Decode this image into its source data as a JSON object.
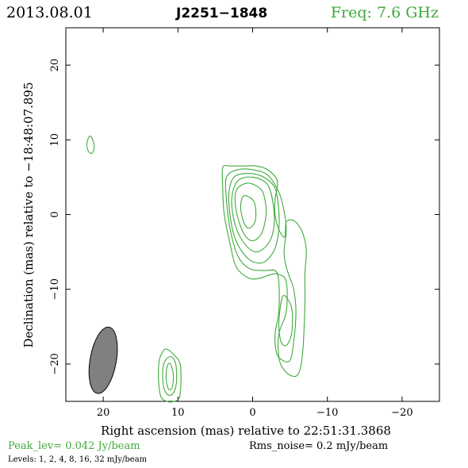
{
  "header": {
    "date": "2013.08.01",
    "source": "J2251−1848",
    "frequency": "Freq: 7.6 GHz"
  },
  "colors": {
    "contour": "#3faa3a",
    "beam_fill": "#808080",
    "text": "#000000"
  },
  "footer": {
    "peak": "Peak_lev=  0.042 Jy/beam",
    "rms": "Rms_noise=  0.2 mJy/beam",
    "levels": "Levels:  1,  2,  4,  8,  16,  32 mJy/beam"
  },
  "chart_data": {
    "type": "contour",
    "xlabel": "Right ascension (mas) relative to 22:51:31.3868",
    "ylabel": "Declination (mas) relative to −18:48:07.895",
    "xlim": [
      25,
      -25
    ],
    "ylim": [
      -25,
      25
    ],
    "x_ticks": [
      20,
      10,
      0,
      -10,
      -20
    ],
    "x_tick_labels": [
      "20",
      "10",
      "0",
      "−10",
      "−20"
    ],
    "y_ticks": [
      20,
      10,
      0,
      -10,
      -20
    ],
    "y_tick_labels": [
      "20",
      "10",
      "0",
      "−10",
      "−20"
    ],
    "contour_levels_mJy": [
      1,
      2,
      4,
      8,
      16,
      32
    ],
    "beam": {
      "x": 20,
      "y": -19.5,
      "major_mas": 9.0,
      "minor_mas": 3.5,
      "pa_deg": 10
    },
    "contours": [
      {
        "level": 1,
        "points": [
          [
            -3.3,
            4.5
          ],
          [
            -2,
            6
          ],
          [
            -0.5,
            6.5
          ],
          [
            1,
            6.5
          ],
          [
            3,
            6.5
          ],
          [
            4,
            6.3
          ],
          [
            4,
            3.5
          ],
          [
            3.8,
            0
          ],
          [
            3,
            -4
          ],
          [
            2.2,
            -7
          ],
          [
            0.5,
            -8.5
          ],
          [
            -1,
            -8.5
          ],
          [
            -2.5,
            -8
          ],
          [
            -3.5,
            -8
          ],
          [
            -4.5,
            -9
          ],
          [
            -4.5,
            -13
          ],
          [
            -3.5,
            -16
          ],
          [
            -3.5,
            -19
          ],
          [
            -4,
            -20.5
          ],
          [
            -5,
            -21.5
          ],
          [
            -6,
            -21.5
          ],
          [
            -6.5,
            -20
          ],
          [
            -6.8,
            -17
          ],
          [
            -7,
            -12
          ],
          [
            -7,
            -8
          ],
          [
            -7.2,
            -5
          ],
          [
            -7,
            -3.5
          ],
          [
            -6.5,
            -2
          ],
          [
            -5.5,
            -0.8
          ],
          [
            -4.5,
            -1
          ],
          [
            -4.3,
            -3
          ],
          [
            -3.5,
            -2
          ],
          [
            -3,
            0
          ],
          [
            -3,
            2
          ]
        ]
      },
      {
        "level": 1,
        "points": [
          [
            11.5,
            -18
          ],
          [
            10.5,
            -18.8
          ],
          [
            9.7,
            -20
          ],
          [
            9.6,
            -22.5
          ],
          [
            9.8,
            -24.5
          ],
          [
            10.5,
            -25
          ],
          [
            11.5,
            -25
          ],
          [
            12.3,
            -24.3
          ],
          [
            12.6,
            -22
          ],
          [
            12.5,
            -19.5
          ],
          [
            12,
            -18.3
          ]
        ]
      },
      {
        "level": 1,
        "points": [
          [
            21.8,
            10.5
          ],
          [
            21.4,
            10
          ],
          [
            21.2,
            9
          ],
          [
            21.5,
            8.2
          ],
          [
            22,
            8.5
          ],
          [
            22.2,
            9.5
          ]
        ]
      },
      {
        "level": 2,
        "points": [
          [
            -3.5,
            3
          ],
          [
            -2,
            5.3
          ],
          [
            0,
            6
          ],
          [
            2,
            6
          ],
          [
            3.5,
            5
          ],
          [
            3.5,
            2
          ],
          [
            3,
            -2
          ],
          [
            2,
            -5.5
          ],
          [
            0.5,
            -7.2
          ],
          [
            -1.5,
            -7.5
          ],
          [
            -3,
            -7.5
          ],
          [
            -3.5,
            -9
          ],
          [
            -3.5,
            -13
          ],
          [
            -3,
            -16
          ],
          [
            -3.2,
            -18.5
          ],
          [
            -4,
            -19.5
          ],
          [
            -5,
            -19.5
          ],
          [
            -5.5,
            -17
          ],
          [
            -5.8,
            -13
          ],
          [
            -5.5,
            -10
          ],
          [
            -5,
            -8.5
          ],
          [
            -4.5,
            -7
          ],
          [
            -4.2,
            -5
          ],
          [
            -4.5,
            -2
          ],
          [
            -4.2,
            0.5
          ]
        ]
      },
      {
        "level": 2,
        "points": [
          [
            11,
            -19
          ],
          [
            10.3,
            -20
          ],
          [
            10.2,
            -22.5
          ],
          [
            10.7,
            -24
          ],
          [
            11.5,
            -24
          ],
          [
            12,
            -22.5
          ],
          [
            11.9,
            -20
          ]
        ]
      },
      {
        "level": 4,
        "points": [
          [
            -3,
            3.5
          ],
          [
            -1.5,
            5
          ],
          [
            0.5,
            5.5
          ],
          [
            2.5,
            5
          ],
          [
            3.2,
            2.5
          ],
          [
            2.8,
            -1.5
          ],
          [
            2,
            -4
          ],
          [
            0.5,
            -6
          ],
          [
            -1,
            -6.5
          ],
          [
            -2,
            -6
          ],
          [
            -3,
            -4.5
          ],
          [
            -3.5,
            -2
          ],
          [
            -3.5,
            0.5
          ]
        ]
      },
      {
        "level": 4,
        "points": [
          [
            -4,
            -11
          ],
          [
            -3.5,
            -14.5
          ],
          [
            -3.8,
            -17
          ],
          [
            -4.5,
            -17.5
          ],
          [
            -5.2,
            -16
          ],
          [
            -5.3,
            -13
          ],
          [
            -4.8,
            -11.5
          ]
        ]
      },
      {
        "level": 4,
        "points": [
          [
            11,
            -20
          ],
          [
            10.6,
            -21.5
          ],
          [
            10.8,
            -23.2
          ],
          [
            11.3,
            -23.3
          ],
          [
            11.6,
            -21.7
          ],
          [
            11.4,
            -20.2
          ]
        ]
      },
      {
        "level": 8,
        "points": [
          [
            -2,
            4
          ],
          [
            0,
            5
          ],
          [
            2,
            4.5
          ],
          [
            2.8,
            2
          ],
          [
            2.3,
            -1.5
          ],
          [
            1,
            -4
          ],
          [
            -0.5,
            -5
          ],
          [
            -2,
            -4
          ],
          [
            -2.8,
            -2
          ],
          [
            -2.8,
            1
          ]
        ]
      },
      {
        "level": 16,
        "points": [
          [
            -1,
            3.5
          ],
          [
            0.7,
            4.2
          ],
          [
            2.2,
            3.2
          ],
          [
            2.2,
            0.5
          ],
          [
            1.2,
            -2.5
          ],
          [
            0,
            -3.5
          ],
          [
            -1.2,
            -2.5
          ],
          [
            -1.8,
            0
          ],
          [
            -1.6,
            2.2
          ]
        ]
      },
      {
        "level": 32,
        "points": [
          [
            0,
            2
          ],
          [
            1.2,
            2.5
          ],
          [
            1.6,
            1
          ],
          [
            1.2,
            -1
          ],
          [
            0.5,
            -1.8
          ],
          [
            -0.3,
            -1
          ],
          [
            -0.4,
            0.8
          ]
        ]
      }
    ]
  }
}
